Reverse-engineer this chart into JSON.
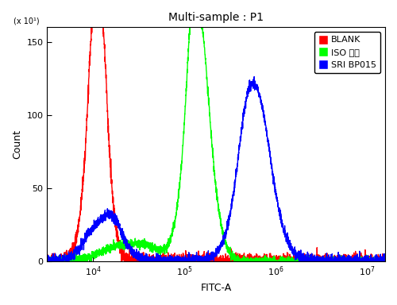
{
  "title": "Multi-sample : P1",
  "xlabel": "FITC-A",
  "ylabel": "Count",
  "ylabel_multiplier": "(x 10¹)",
  "xlim_log": [
    3.5,
    7.2
  ],
  "ylim": [
    0,
    160
  ],
  "yticks": [
    0,
    50,
    100,
    150
  ],
  "background_color": "#ffffff",
  "plot_bg_color": "#ffffff",
  "legend_labels": [
    "BLANK",
    "ISO 多抗",
    "SRI BP015"
  ],
  "legend_colors": [
    "red",
    "lime",
    "blue"
  ],
  "title_fontsize": 10,
  "axis_fontsize": 9,
  "tick_fontsize": 8,
  "legend_fontsize": 8,
  "line_width": 1.0
}
